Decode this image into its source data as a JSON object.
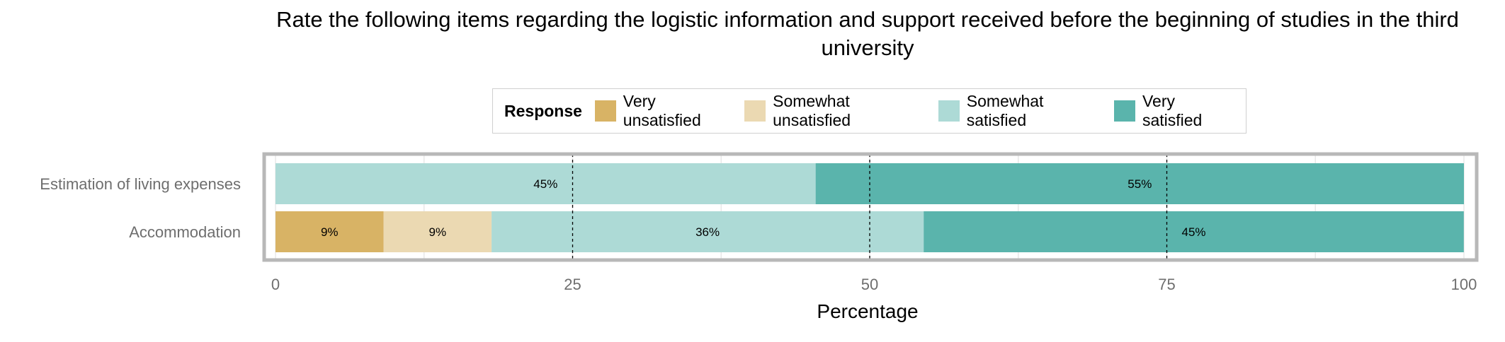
{
  "chart_data": {
    "type": "bar",
    "orientation": "horizontal",
    "stacked": true,
    "title": "Rate the following items regarding the logistic information and support received before the beginning of studies in the third university",
    "xlabel": "Percentage",
    "ylabel": "",
    "xlim": [
      0,
      100
    ],
    "xticks": [
      0,
      25,
      50,
      75,
      100
    ],
    "reference_lines": [
      25,
      50,
      75
    ],
    "grid": true,
    "legend": {
      "title": "Response",
      "placement": "top",
      "entries": [
        "Very unsatisfied",
        "Somewhat unsatisfied",
        "Somewhat satisfied",
        "Very satisfied"
      ]
    },
    "categories": [
      "Estimation of living expenses",
      "Accommodation"
    ],
    "series": [
      {
        "name": "Very unsatisfied",
        "color": "#D8B365",
        "values": [
          0,
          9.09
        ],
        "labels": [
          "",
          "9%"
        ]
      },
      {
        "name": "Somewhat unsatisfied",
        "color": "#EBD9B2",
        "values": [
          0,
          9.09
        ],
        "labels": [
          "",
          "9%"
        ]
      },
      {
        "name": "Somewhat satisfied",
        "color": "#ADDAD6",
        "values": [
          45.45,
          36.36
        ],
        "labels": [
          "45%",
          "36%"
        ]
      },
      {
        "name": "Very satisfied",
        "color": "#5AB4AC",
        "values": [
          54.55,
          45.45
        ],
        "labels": [
          "55%",
          "45%"
        ]
      }
    ]
  }
}
